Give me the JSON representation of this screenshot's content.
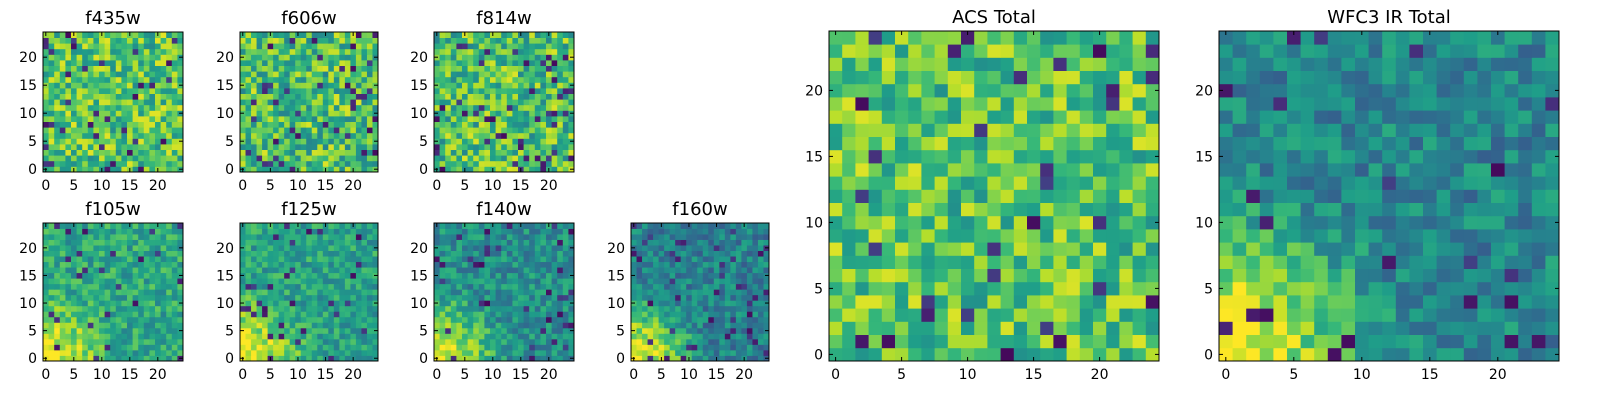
{
  "chart_data": [
    {
      "type": "heatmap",
      "title": "f435w",
      "xlim": [
        0,
        24
      ],
      "ylim": [
        0,
        24
      ],
      "xticks": [
        0,
        5,
        10,
        15,
        20
      ],
      "yticks": [
        0,
        5,
        10,
        15,
        20
      ],
      "colormap": "viridis",
      "pattern": "uniform-bright",
      "seed": 11,
      "base": 0.74,
      "low": 0.48,
      "high": 0.96,
      "dark_fraction": 0.05
    },
    {
      "type": "heatmap",
      "title": "f606w",
      "xlim": [
        0,
        24
      ],
      "ylim": [
        0,
        24
      ],
      "xticks": [
        0,
        5,
        10,
        15,
        20
      ],
      "yticks": [
        0,
        5,
        10,
        15,
        20
      ],
      "colormap": "viridis",
      "pattern": "uniform-bright",
      "seed": 23,
      "base": 0.7,
      "low": 0.45,
      "high": 0.95,
      "dark_fraction": 0.06
    },
    {
      "type": "heatmap",
      "title": "f814w",
      "xlim": [
        0,
        24
      ],
      "ylim": [
        0,
        24
      ],
      "xticks": [
        0,
        5,
        10,
        15,
        20
      ],
      "yticks": [
        0,
        5,
        10,
        15,
        20
      ],
      "colormap": "viridis",
      "pattern": "uniform-bright",
      "seed": 37,
      "base": 0.68,
      "low": 0.45,
      "high": 0.95,
      "dark_fraction": 0.07
    },
    {
      "type": "heatmap",
      "title": "f105w",
      "xlim": [
        0,
        24
      ],
      "ylim": [
        0,
        24
      ],
      "xticks": [
        0,
        5,
        10,
        15,
        20
      ],
      "yticks": [
        0,
        5,
        10,
        15,
        20
      ],
      "colormap": "viridis",
      "pattern": "corner-glow",
      "seed": 41,
      "base": 0.6,
      "low": 0.3,
      "high": 0.97,
      "dark_fraction": 0.06
    },
    {
      "type": "heatmap",
      "title": "f125w",
      "xlim": [
        0,
        24
      ],
      "ylim": [
        0,
        24
      ],
      "xticks": [
        0,
        5,
        10,
        15,
        20
      ],
      "yticks": [
        0,
        5,
        10,
        15,
        20
      ],
      "colormap": "viridis",
      "pattern": "corner-glow",
      "seed": 53,
      "base": 0.58,
      "low": 0.28,
      "high": 0.97,
      "dark_fraction": 0.06
    },
    {
      "type": "heatmap",
      "title": "f140w",
      "xlim": [
        0,
        24
      ],
      "ylim": [
        0,
        24
      ],
      "xticks": [
        0,
        5,
        10,
        15,
        20
      ],
      "yticks": [
        0,
        5,
        10,
        15,
        20
      ],
      "colormap": "viridis",
      "pattern": "corner-glow",
      "seed": 67,
      "base": 0.5,
      "low": 0.22,
      "high": 0.95,
      "dark_fraction": 0.05
    },
    {
      "type": "heatmap",
      "title": "f160w",
      "xlim": [
        0,
        24
      ],
      "ylim": [
        0,
        24
      ],
      "xticks": [
        0,
        5,
        10,
        15,
        20
      ],
      "yticks": [
        0,
        5,
        10,
        15,
        20
      ],
      "colormap": "viridis",
      "pattern": "corner-glow",
      "seed": 79,
      "base": 0.44,
      "low": 0.15,
      "high": 0.97,
      "dark_fraction": 0.07
    },
    {
      "type": "heatmap",
      "title": "ACS Total",
      "xlim": [
        0,
        24
      ],
      "ylim": [
        0,
        24
      ],
      "xticks": [
        0,
        5,
        10,
        15,
        20
      ],
      "yticks": [
        0,
        5,
        10,
        15,
        20
      ],
      "colormap": "viridis",
      "pattern": "uniform-bright",
      "seed": 97,
      "base": 0.72,
      "low": 0.5,
      "high": 0.95,
      "dark_fraction": 0.05
    },
    {
      "type": "heatmap",
      "title": "WFC3 IR Total",
      "xlim": [
        0,
        24
      ],
      "ylim": [
        0,
        24
      ],
      "xticks": [
        0,
        5,
        10,
        15,
        20
      ],
      "yticks": [
        0,
        5,
        10,
        15,
        20
      ],
      "colormap": "viridis",
      "pattern": "corner-glow",
      "seed": 113,
      "base": 0.46,
      "low": 0.18,
      "high": 0.97,
      "dark_fraction": 0.04
    }
  ]
}
